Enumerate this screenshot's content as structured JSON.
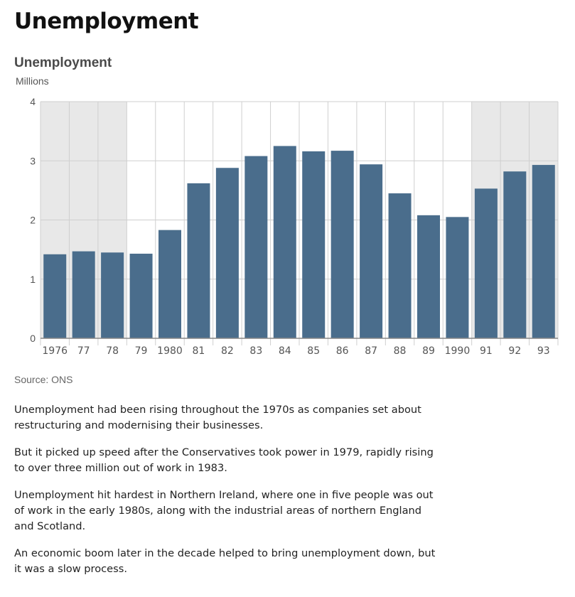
{
  "page": {
    "title": "Unemployment",
    "source": "Source: ONS",
    "paragraphs": [
      "Unemployment had been rising throughout the 1970s as companies set about restructuring and modernising their businesses.",
      "But it picked up speed after the Conservatives took power in 1979, rapidly rising to over three million out of work in 1983.",
      "Unemployment hit hardest in Northern Ireland, where one in five people was out of work in the early 1980s, along with the industrial areas of northern England and Scotland.",
      "An economic boom later in the decade helped to bring unemployment down, but it was a slow process."
    ]
  },
  "chart_data": {
    "type": "bar",
    "title": "Unemployment",
    "ylabel": "Millions",
    "xlabel": "",
    "categories": [
      "1976",
      "77",
      "78",
      "79",
      "1980",
      "81",
      "82",
      "83",
      "84",
      "85",
      "86",
      "87",
      "88",
      "89",
      "1990",
      "91",
      "92",
      "93"
    ],
    "values": [
      1.42,
      1.47,
      1.45,
      1.43,
      1.83,
      2.62,
      2.88,
      3.08,
      3.25,
      3.16,
      3.17,
      2.94,
      2.45,
      2.08,
      2.05,
      2.53,
      2.82,
      2.93
    ],
    "ylim": [
      0,
      4
    ],
    "yticks": [
      0,
      1,
      2,
      3,
      4
    ],
    "shaded_categories": [
      "1976",
      "77",
      "78",
      "91",
      "92",
      "93"
    ],
    "grid": true,
    "colors": {
      "bar": "#4a6d8c",
      "shade": "#e8e8e8",
      "grid": "#cfcfcf",
      "axis": "#888888",
      "tick_label": "#555555"
    }
  }
}
